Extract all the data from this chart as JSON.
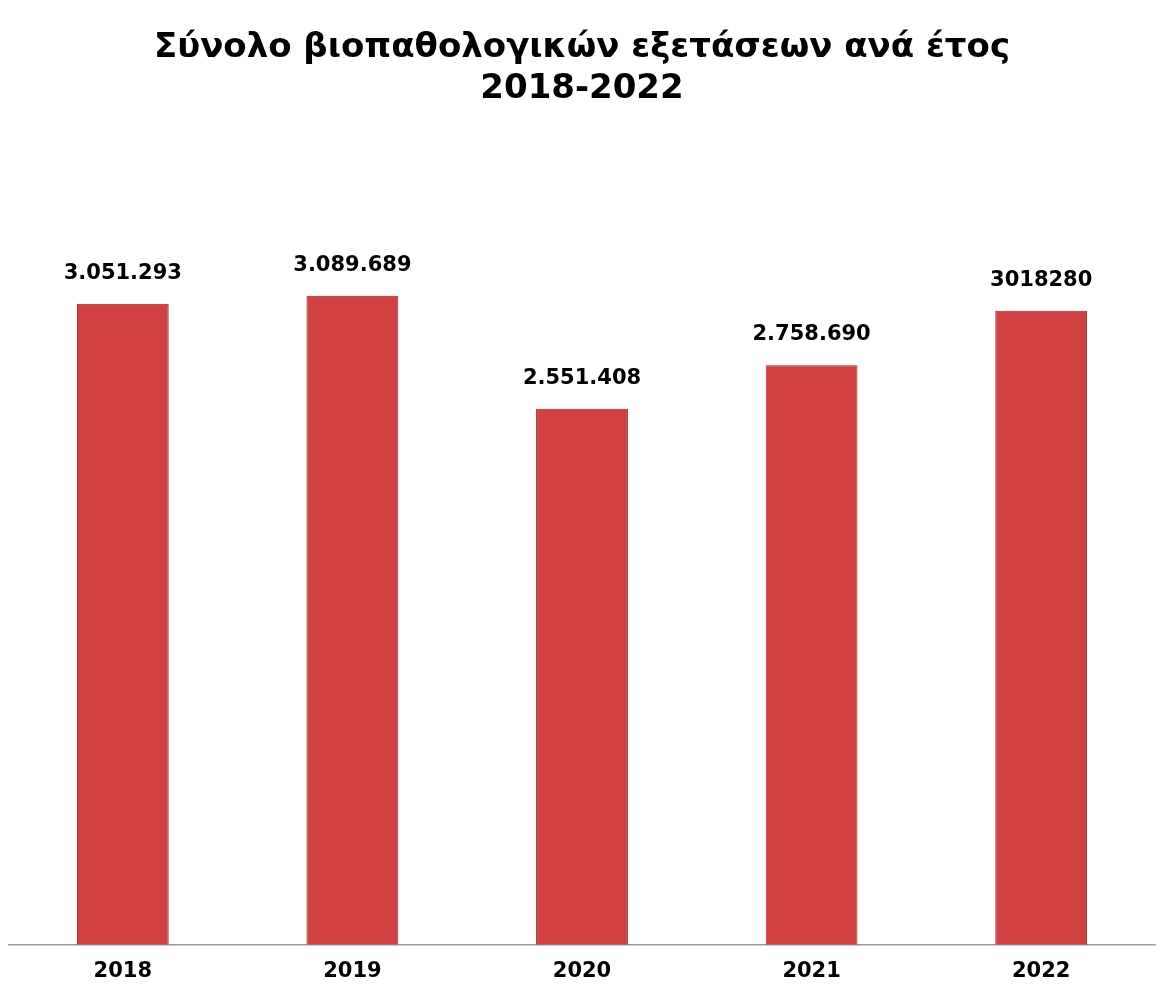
{
  "chart_data": {
    "type": "bar",
    "title": "Σύνολο βιοπαθολογικών εξετάσεων ανά έτος\n2018-2022",
    "categories": [
      "2018",
      "2019",
      "2020",
      "2021",
      "2022"
    ],
    "values": [
      3051293,
      3089689,
      2551408,
      2758690,
      3018280
    ],
    "value_labels": [
      "3.051.293",
      "3.089.689",
      "2.551.408",
      "2.758.690",
      "3018280"
    ],
    "color": "#d24141",
    "grid": false,
    "legend": false
  }
}
